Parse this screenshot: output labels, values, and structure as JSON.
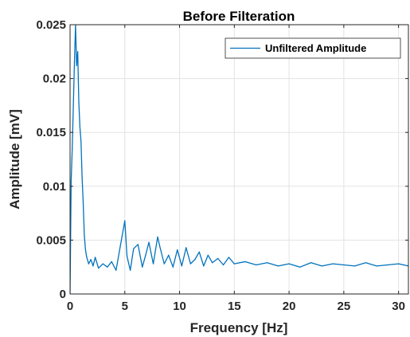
{
  "chart_data": {
    "type": "line",
    "title": "Before Filteration",
    "xlabel": "Frequency [Hz]",
    "ylabel": "Amplitude [mV]",
    "xlim": [
      0,
      30.9
    ],
    "ylim": [
      0,
      0.025
    ],
    "x_ticks": [
      0,
      5,
      10,
      15,
      20,
      25,
      30
    ],
    "x_tick_labels": [
      "0",
      "5",
      "10",
      "15",
      "20",
      "25",
      "30"
    ],
    "y_ticks": [
      0,
      0.005,
      0.01,
      0.015,
      0.02,
      0.025
    ],
    "y_tick_labels": [
      "0",
      "0.005",
      "0.01",
      "0.015",
      "0.02",
      "0.025"
    ],
    "grid": true,
    "legend_position": "top-right",
    "series": [
      {
        "name": "Unfiltered Amplitude",
        "color": "#0072BD",
        "x": [
          0.0,
          0.1,
          0.2,
          0.3,
          0.4,
          0.5,
          0.6,
          0.7,
          0.8,
          0.9,
          1.0,
          1.1,
          1.2,
          1.3,
          1.4,
          1.5,
          1.7,
          1.9,
          2.1,
          2.3,
          2.6,
          3.0,
          3.4,
          3.8,
          4.2,
          4.6,
          5.0,
          5.2,
          5.5,
          5.8,
          6.2,
          6.6,
          6.9,
          7.2,
          7.6,
          8.0,
          8.2,
          8.6,
          9.0,
          9.4,
          9.8,
          10.2,
          10.6,
          11.0,
          11.4,
          11.8,
          12.2,
          12.6,
          13.0,
          13.5,
          14.0,
          14.5,
          15.0,
          16.0,
          17.0,
          18.0,
          19.0,
          20.0,
          21.0,
          22.0,
          23.0,
          24.0,
          25.0,
          26.0,
          27.0,
          28.0,
          29.0,
          30.0,
          30.9
        ],
        "y": [
          0.0,
          0.0105,
          0.0135,
          0.0175,
          0.0215,
          0.025,
          0.0212,
          0.0225,
          0.0178,
          0.0155,
          0.0142,
          0.0108,
          0.0085,
          0.0055,
          0.0042,
          0.0035,
          0.0028,
          0.0032,
          0.0026,
          0.0034,
          0.0024,
          0.0028,
          0.0025,
          0.003,
          0.0022,
          0.0045,
          0.0068,
          0.0035,
          0.0022,
          0.0042,
          0.0046,
          0.0025,
          0.0036,
          0.0048,
          0.0028,
          0.0053,
          0.0044,
          0.0028,
          0.0036,
          0.0025,
          0.0041,
          0.0026,
          0.0043,
          0.0028,
          0.0032,
          0.0039,
          0.0026,
          0.0036,
          0.0029,
          0.0033,
          0.0027,
          0.0034,
          0.0028,
          0.003,
          0.0027,
          0.0029,
          0.0026,
          0.0028,
          0.0025,
          0.0029,
          0.0026,
          0.0028,
          0.0027,
          0.0026,
          0.0029,
          0.0026,
          0.0027,
          0.0028,
          0.0026
        ]
      }
    ]
  }
}
